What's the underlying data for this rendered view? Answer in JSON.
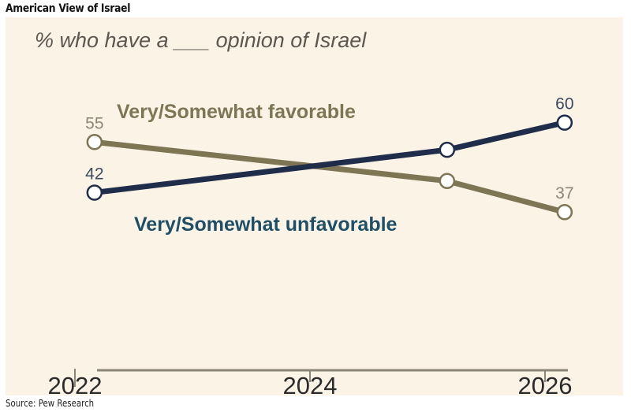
{
  "title": "American View of Israel",
  "source": "Source: Pew Research",
  "chart_data": {
    "type": "line",
    "title": "% who have a ___ opinion of Israel",
    "xlabel": "",
    "ylabel": "",
    "x_ticks": [
      "2022",
      "2024",
      "2026"
    ],
    "x": [
      "2022-03",
      "2025-03",
      "2026-03"
    ],
    "grid": false,
    "series": [
      {
        "name": "Very/Somewhat favorable",
        "values": [
          55,
          45,
          37
        ],
        "color": "#7d7554",
        "labels": [
          "55",
          null,
          "37"
        ]
      },
      {
        "name": "Very/Somewhat unfavorable",
        "values": [
          42,
          53,
          60
        ],
        "color": "#1f2d4a",
        "labels": [
          "42",
          null,
          "60"
        ]
      }
    ],
    "series_label_colors": [
      "#7d7554",
      "#1e4f66"
    ],
    "marker": "open-circle"
  }
}
